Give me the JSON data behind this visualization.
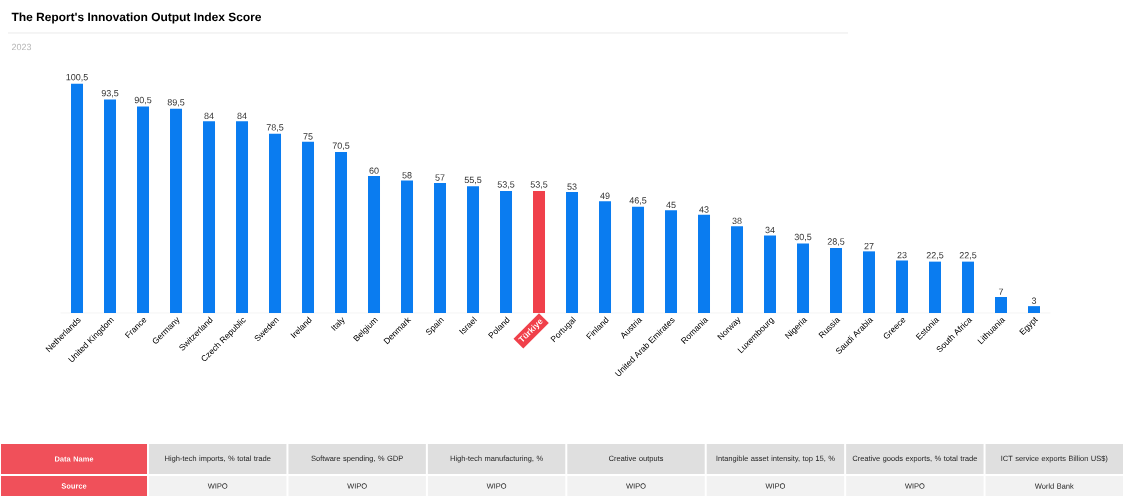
{
  "chart_data": {
    "type": "bar",
    "title": "The Report's Innovation Output Index Score",
    "subtitle": "2023",
    "categories": [
      "Netherlands",
      "United Kingdom",
      "France",
      "Germany",
      "Switzerland",
      "Czech Republic",
      "Sweden",
      "Ireland",
      "Italy",
      "Belgium",
      "Denmark",
      "Spain",
      "Israel",
      "Poland",
      "Türkiye",
      "Portugal",
      "Finland",
      "Austria",
      "United Arab Emirates",
      "Romania",
      "Norway",
      "Luxembourg",
      "Nigeria",
      "Russia",
      "Saudi Arabia",
      "Greece",
      "Estonia",
      "South Africa",
      "Lithuania",
      "Egypt"
    ],
    "values": [
      100.5,
      93.5,
      90.5,
      89.5,
      84,
      84,
      78.5,
      75,
      70.5,
      60,
      58,
      57,
      55.5,
      53.5,
      53.5,
      53,
      49,
      46.5,
      45,
      43,
      38,
      34,
      30.5,
      28.5,
      27,
      23,
      22.5,
      22.5,
      7,
      3
    ],
    "value_labels": [
      "100,5",
      "93,5",
      "90,5",
      "89,5",
      "84",
      "84",
      "78,5",
      "75",
      "70,5",
      "60",
      "58",
      "57",
      "55,5",
      "53,5",
      "53,5",
      "53",
      "49",
      "46,5",
      "45",
      "43",
      "38",
      "34",
      "30,5",
      "28,5",
      "27",
      "23",
      "22,5",
      "22,5",
      "7",
      "3"
    ],
    "colors": [
      "#0a7cf0",
      "#0a7cf0",
      "#0a7cf0",
      "#0a7cf0",
      "#0a7cf0",
      "#0a7cf0",
      "#0a7cf0",
      "#0a7cf0",
      "#0a7cf0",
      "#0a7cf0",
      "#0a7cf0",
      "#0a7cf0",
      "#0a7cf0",
      "#0a7cf0",
      "#f0404a",
      "#0a7cf0",
      "#0a7cf0",
      "#0a7cf0",
      "#0a7cf0",
      "#0a7cf0",
      "#0a7cf0",
      "#0a7cf0",
      "#0a7cf0",
      "#0a7cf0",
      "#0a7cf0",
      "#0a7cf0",
      "#0a7cf0",
      "#0a7cf0",
      "#0a7cf0",
      "#0a7cf0"
    ],
    "annotations": [
      "Data Name",
      "High-tech imports, % total trade",
      "Software spending, % GDP",
      "High-tech manufacturing, %",
      "Creative outputs",
      "Intangible asset intensity, top 15, %",
      "Creative goods exports, % total trade",
      "ICT service exports Billion US$)",
      "Source",
      "WIPO",
      "WIPO",
      "WIPO",
      "WIPO",
      "WIPO",
      "WIPO",
      "World Bank"
    ]
  }
}
